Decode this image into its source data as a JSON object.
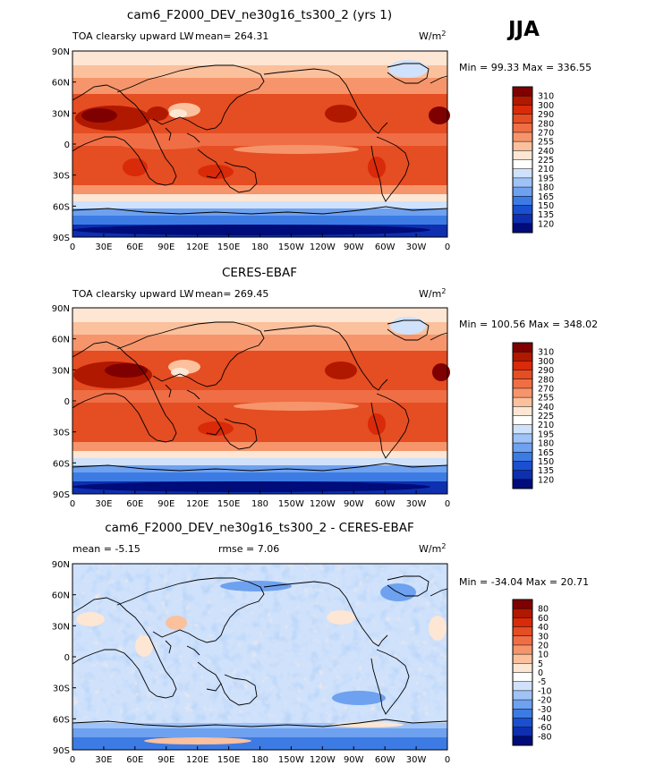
{
  "season": "JJA",
  "units": "W/m",
  "units_exp": "2",
  "chart_data": [
    {
      "type": "heatmap",
      "title": "cam6_F2000_DEV_ne30g16_ts300_2 (yrs 1)",
      "variable": "TOA clearsky upward LW",
      "mean_label": "mean=",
      "mean": "264.31",
      "minmax": "Min =  99.33 Max = 336.55",
      "xticks": [
        "0",
        "30E",
        "60E",
        "90E",
        "120E",
        "150E",
        "180",
        "150W",
        "120W",
        "90W",
        "60W",
        "30W",
        "0"
      ],
      "yticks": [
        "90N",
        "60N",
        "30N",
        "0",
        "30S",
        "60S",
        "90S"
      ],
      "xlim": [
        0,
        360
      ],
      "ylim": [
        -90,
        90
      ],
      "colorbar": {
        "levels": [
          "310",
          "300",
          "290",
          "280",
          "270",
          "255",
          "240",
          "225",
          "210",
          "195",
          "180",
          "165",
          "150",
          "135",
          "120"
        ],
        "colors": [
          "#7f0000",
          "#b01800",
          "#d92a0a",
          "#e54d22",
          "#f06e45",
          "#f6956b",
          "#fbc09c",
          "#fde6d3",
          "#ffffff",
          "#cfe1fb",
          "#9fc3f7",
          "#6ea1ef",
          "#3d7be4",
          "#1b4fd1",
          "#0d2fb0",
          "#000c7a"
        ]
      }
    },
    {
      "type": "heatmap",
      "title": "CERES-EBAF",
      "variable": "TOA clearsky upward LW",
      "mean_label": "mean=",
      "mean": "269.45",
      "minmax": "Min = 100.56 Max = 348.02",
      "xticks": [
        "0",
        "30E",
        "60E",
        "90E",
        "120E",
        "150E",
        "180",
        "150W",
        "120W",
        "90W",
        "60W",
        "30W",
        "0"
      ],
      "yticks": [
        "90N",
        "60N",
        "30N",
        "0",
        "30S",
        "60S",
        "90S"
      ],
      "xlim": [
        0,
        360
      ],
      "ylim": [
        -90,
        90
      ],
      "colorbar": {
        "levels": [
          "310",
          "300",
          "290",
          "280",
          "270",
          "255",
          "240",
          "225",
          "210",
          "195",
          "180",
          "165",
          "150",
          "135",
          "120"
        ],
        "colors": [
          "#7f0000",
          "#b01800",
          "#d92a0a",
          "#e54d22",
          "#f06e45",
          "#f6956b",
          "#fbc09c",
          "#fde6d3",
          "#ffffff",
          "#cfe1fb",
          "#9fc3f7",
          "#6ea1ef",
          "#3d7be4",
          "#1b4fd1",
          "#0d2fb0",
          "#000c7a"
        ]
      }
    },
    {
      "type": "heatmap",
      "title": "cam6_F2000_DEV_ne30g16_ts300_2 - CERES-EBAF",
      "mean_label": "mean =",
      "mean": "-5.15",
      "rmse_label": "rmse =",
      "rmse": "7.06",
      "minmax": "Min = -34.04 Max =  20.71",
      "xticks": [
        "0",
        "30E",
        "60E",
        "90E",
        "120E",
        "150E",
        "180",
        "150W",
        "120W",
        "90W",
        "60W",
        "30W",
        "0"
      ],
      "yticks": [
        "90N",
        "60N",
        "30N",
        "0",
        "30S",
        "60S",
        "90S"
      ],
      "xlim": [
        0,
        360
      ],
      "ylim": [
        -90,
        90
      ],
      "colorbar": {
        "levels": [
          "80",
          "60",
          "40",
          "30",
          "20",
          "10",
          "5",
          "0",
          "-5",
          "-10",
          "-20",
          "-30",
          "-40",
          "-60",
          "-80"
        ],
        "colors": [
          "#7f0000",
          "#b01800",
          "#d92a0a",
          "#e54d22",
          "#f06e45",
          "#f6956b",
          "#fbc09c",
          "#fde6d3",
          "#ffffff",
          "#cfe1fb",
          "#9fc3f7",
          "#6ea1ef",
          "#3d7be4",
          "#1b4fd1",
          "#0d2fb0",
          "#000c7a"
        ]
      }
    }
  ]
}
